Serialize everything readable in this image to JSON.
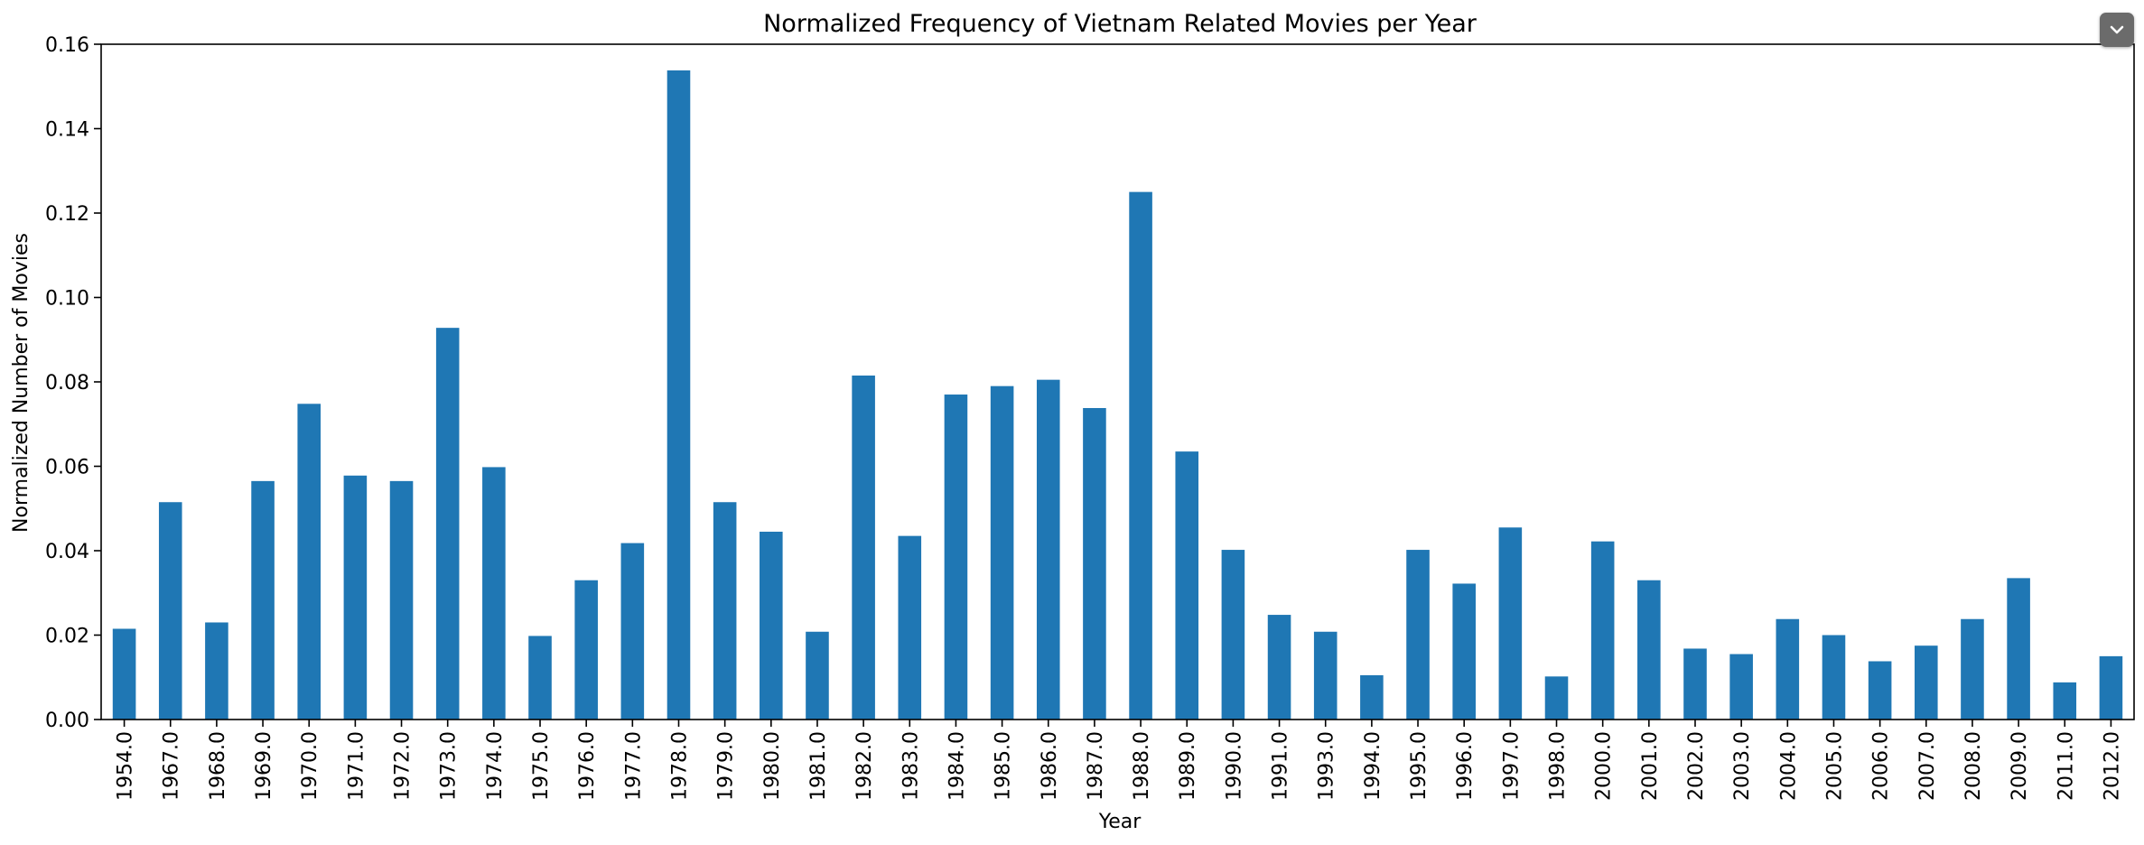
{
  "chart_data": {
    "type": "bar",
    "title": "Normalized Frequency of Vietnam Related Movies per Year",
    "xlabel": "Year",
    "ylabel": "Normalized Number of Movies",
    "ylim": [
      0,
      0.16
    ],
    "yticks": [
      "0.00",
      "0.02",
      "0.04",
      "0.06",
      "0.08",
      "0.10",
      "0.12",
      "0.14",
      "0.16"
    ],
    "grid": false,
    "legend": "none",
    "bar_color": "#1f77b4",
    "categories": [
      "1954.0",
      "1967.0",
      "1968.0",
      "1969.0",
      "1970.0",
      "1971.0",
      "1972.0",
      "1973.0",
      "1974.0",
      "1975.0",
      "1976.0",
      "1977.0",
      "1978.0",
      "1979.0",
      "1980.0",
      "1981.0",
      "1982.0",
      "1983.0",
      "1984.0",
      "1985.0",
      "1986.0",
      "1987.0",
      "1988.0",
      "1989.0",
      "1990.0",
      "1991.0",
      "1993.0",
      "1994.0",
      "1995.0",
      "1996.0",
      "1997.0",
      "1998.0",
      "2000.0",
      "2001.0",
      "2002.0",
      "2003.0",
      "2004.0",
      "2005.0",
      "2006.0",
      "2007.0",
      "2008.0",
      "2009.0",
      "2011.0",
      "2012.0"
    ],
    "values": [
      0.0215,
      0.0515,
      0.023,
      0.0565,
      0.0748,
      0.0578,
      0.0565,
      0.0928,
      0.0598,
      0.0198,
      0.033,
      0.0418,
      0.1538,
      0.0515,
      0.0445,
      0.0208,
      0.0815,
      0.0435,
      0.077,
      0.079,
      0.0805,
      0.0738,
      0.125,
      0.0635,
      0.0402,
      0.0248,
      0.0208,
      0.0105,
      0.0402,
      0.0322,
      0.0455,
      0.0102,
      0.0422,
      0.033,
      0.0168,
      0.0155,
      0.0238,
      0.02,
      0.0138,
      0.0175,
      0.0238,
      0.0335,
      0.0088,
      0.015
    ]
  },
  "ui": {
    "collapse_button_icon": "chevron-down-icon"
  }
}
